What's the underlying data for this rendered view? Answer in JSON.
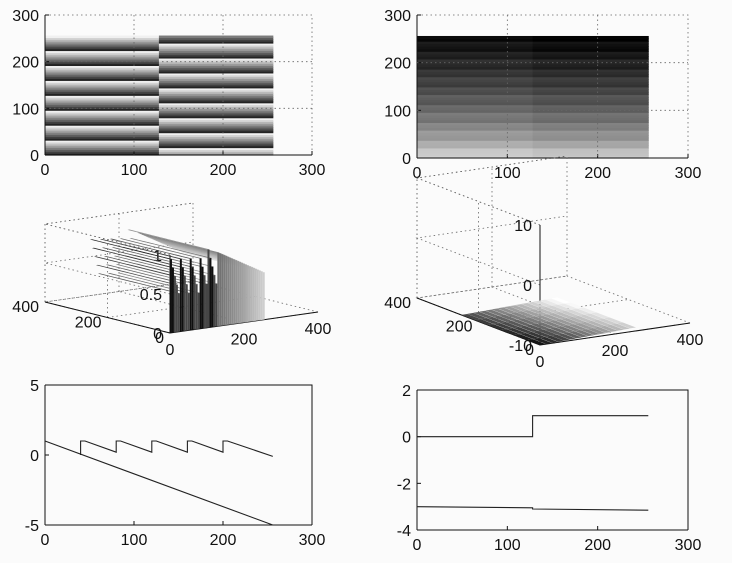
{
  "chart_data": [
    {
      "panel": "top-left",
      "type": "heatmap",
      "xlim": [
        0,
        300
      ],
      "ylim": [
        0,
        300
      ],
      "xticks": [
        "0",
        "100",
        "200",
        "300"
      ],
      "yticks": [
        "0",
        "100",
        "200",
        "300"
      ],
      "image_extent": {
        "x": [
          0,
          256
        ],
        "y": [
          0,
          256
        ]
      },
      "split_x": 128,
      "stripe_period": 32,
      "grid": true
    },
    {
      "panel": "top-right",
      "type": "heatmap",
      "xlim": [
        0,
        300
      ],
      "ylim": [
        0,
        300
      ],
      "xticks": [
        "0",
        "100",
        "200",
        "300"
      ],
      "yticks": [
        "0",
        "100",
        "200",
        "300"
      ],
      "image_extent": {
        "x": [
          0,
          256
        ],
        "y": [
          0,
          256
        ]
      },
      "split_x": 128,
      "grid": true
    },
    {
      "panel": "middle-left",
      "type": "surface",
      "xlim": [
        0,
        400
      ],
      "ylim": [
        0,
        400
      ],
      "zlim": [
        0,
        1
      ],
      "xticks": [
        "0",
        "200",
        "400"
      ],
      "yticks": [
        "0",
        "200",
        "400"
      ],
      "zticks": [
        "0",
        "0.5",
        "1"
      ],
      "grid": true
    },
    {
      "panel": "middle-right",
      "type": "surface",
      "xlim": [
        0,
        400
      ],
      "ylim": [
        0,
        400
      ],
      "zlim": [
        -10,
        10
      ],
      "xticks": [
        "0",
        "200",
        "400"
      ],
      "yticks": [
        "0",
        "200",
        "400"
      ],
      "zticks": [
        "-10",
        "0",
        "10"
      ],
      "grid": true
    },
    {
      "panel": "bottom-left",
      "type": "line",
      "xlim": [
        0,
        300
      ],
      "ylim": [
        -5,
        5
      ],
      "xticks": [
        "0",
        "100",
        "200",
        "300"
      ],
      "yticks": [
        "-5",
        "0",
        "5"
      ],
      "grid": false,
      "series": [
        {
          "x": [
            0,
            256
          ],
          "y": [
            1.0,
            -5.0
          ]
        },
        {
          "x": [
            40,
            40,
            45,
            80,
            80,
            85,
            120,
            120,
            125,
            160,
            160,
            165,
            200,
            200,
            205,
            256
          ],
          "y": [
            0,
            1.0,
            1.0,
            0.2,
            1.0,
            1.0,
            0.2,
            1.0,
            1.0,
            0.2,
            1.0,
            1.0,
            0.2,
            1.0,
            1.0,
            -0.1
          ]
        }
      ]
    },
    {
      "panel": "bottom-right",
      "type": "line",
      "xlim": [
        0,
        300
      ],
      "ylim": [
        -4,
        2
      ],
      "xticks": [
        "0",
        "100",
        "200",
        "300"
      ],
      "yticks": [
        "-4",
        "-2",
        "0",
        "2"
      ],
      "grid": false,
      "series": [
        {
          "x": [
            0,
            128,
            128,
            256
          ],
          "y": [
            0,
            0,
            0.9,
            0.9
          ]
        },
        {
          "x": [
            0,
            128,
            128,
            256
          ],
          "y": [
            -3.0,
            -3.05,
            -3.1,
            -3.15
          ]
        }
      ]
    }
  ]
}
